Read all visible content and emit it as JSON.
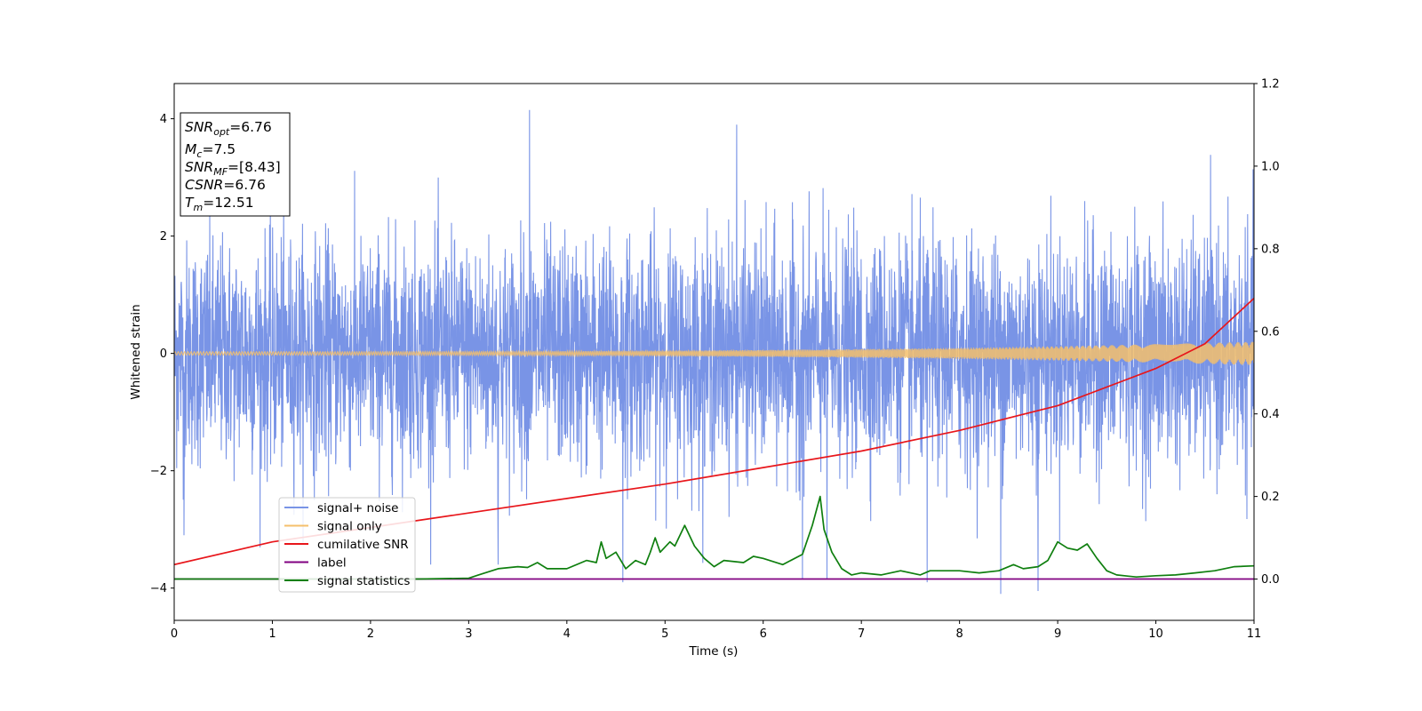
{
  "chart_data": {
    "type": "line",
    "xlabel": "Time (s)",
    "ylabel": "Whitened strain",
    "xlim": [
      0,
      11
    ],
    "ylim": [
      -4.55,
      4.6
    ],
    "y2lim": [
      -0.1,
      1.2
    ],
    "x_ticks": [
      0,
      1,
      2,
      3,
      4,
      5,
      6,
      7,
      8,
      9,
      10,
      11
    ],
    "y_ticks": [
      -4,
      -2,
      0,
      2,
      4
    ],
    "y2_ticks": [
      0.0,
      0.2,
      0.4,
      0.6,
      0.8,
      1.0,
      1.2
    ],
    "x_tick_labels": [
      "0",
      "1",
      "2",
      "3",
      "4",
      "5",
      "6",
      "7",
      "8",
      "9",
      "10",
      "11"
    ],
    "y_tick_labels": [
      "−4",
      "−2",
      "0",
      "2",
      "4"
    ],
    "y2_tick_labels": [
      "0.0",
      "0.2",
      "0.4",
      "0.6",
      "0.8",
      "1.0",
      "1.2"
    ],
    "grid": false,
    "legend_placement": "lower-left",
    "info_box": {
      "snr_opt": "6.76",
      "mc": "7.5",
      "snr_mf": "[8.43]",
      "csnr": "6.76",
      "tm": "12.51"
    },
    "series": [
      {
        "name": "signal+ noise",
        "axis": "left",
        "color": "#7994e6",
        "kind": "noise",
        "typical_range": [
          -2.0,
          2.0
        ],
        "extremes": [
          [
            3.62,
            4.15
          ],
          [
            4.57,
            -3.9
          ],
          [
            5.73,
            3.9
          ],
          [
            8.42,
            -4.1
          ],
          [
            8.8,
            -4.05
          ],
          [
            6.4,
            -3.85
          ],
          [
            6.65,
            -3.85
          ],
          [
            7.67,
            -3.9
          ],
          [
            3.3,
            -3.6
          ],
          [
            0.1,
            -3.1
          ]
        ]
      },
      {
        "name": "signal only",
        "axis": "left",
        "color": "#f5bf6b",
        "kind": "chirp",
        "amplitude_start": 0.03,
        "amplitude_end": 0.2
      },
      {
        "name": "cumilative SNR",
        "axis": "right",
        "color": "#e8161b",
        "x": [
          0,
          1,
          2,
          3,
          4,
          5,
          6,
          7,
          8,
          9,
          10,
          10.5,
          11
        ],
        "y": [
          0.035,
          0.09,
          0.125,
          0.16,
          0.195,
          0.23,
          0.27,
          0.31,
          0.36,
          0.42,
          0.51,
          0.57,
          0.68
        ]
      },
      {
        "name": "label",
        "axis": "right",
        "color": "#800080",
        "x": [
          0,
          11
        ],
        "y": [
          0.0,
          0.0
        ]
      },
      {
        "name": "signal statistics",
        "axis": "right",
        "color": "#0f7f0f",
        "x": [
          0,
          1,
          2,
          2.5,
          3,
          3.1,
          3.3,
          3.5,
          3.6,
          3.7,
          3.8,
          4.0,
          4.2,
          4.3,
          4.35,
          4.4,
          4.5,
          4.6,
          4.7,
          4.8,
          4.85,
          4.9,
          4.95,
          5.05,
          5.1,
          5.2,
          5.3,
          5.4,
          5.5,
          5.6,
          5.8,
          5.9,
          6.0,
          6.2,
          6.4,
          6.5,
          6.58,
          6.62,
          6.7,
          6.8,
          6.9,
          7.0,
          7.2,
          7.4,
          7.6,
          7.7,
          7.8,
          8.0,
          8.2,
          8.4,
          8.55,
          8.65,
          8.8,
          8.9,
          9.0,
          9.1,
          9.2,
          9.3,
          9.4,
          9.5,
          9.6,
          9.8,
          10.0,
          10.2,
          10.4,
          10.6,
          10.8,
          11
        ],
        "y": [
          0.0,
          0.0,
          0.0,
          0.0,
          0.002,
          0.01,
          0.025,
          0.03,
          0.028,
          0.04,
          0.025,
          0.025,
          0.045,
          0.04,
          0.09,
          0.05,
          0.065,
          0.025,
          0.045,
          0.035,
          0.065,
          0.1,
          0.065,
          0.09,
          0.08,
          0.13,
          0.08,
          0.05,
          0.03,
          0.045,
          0.04,
          0.055,
          0.05,
          0.035,
          0.06,
          0.13,
          0.2,
          0.12,
          0.065,
          0.025,
          0.01,
          0.015,
          0.01,
          0.02,
          0.01,
          0.02,
          0.02,
          0.02,
          0.015,
          0.02,
          0.035,
          0.025,
          0.03,
          0.045,
          0.09,
          0.075,
          0.07,
          0.085,
          0.05,
          0.02,
          0.01,
          0.005,
          0.008,
          0.01,
          0.015,
          0.02,
          0.03,
          0.032
        ]
      }
    ]
  }
}
